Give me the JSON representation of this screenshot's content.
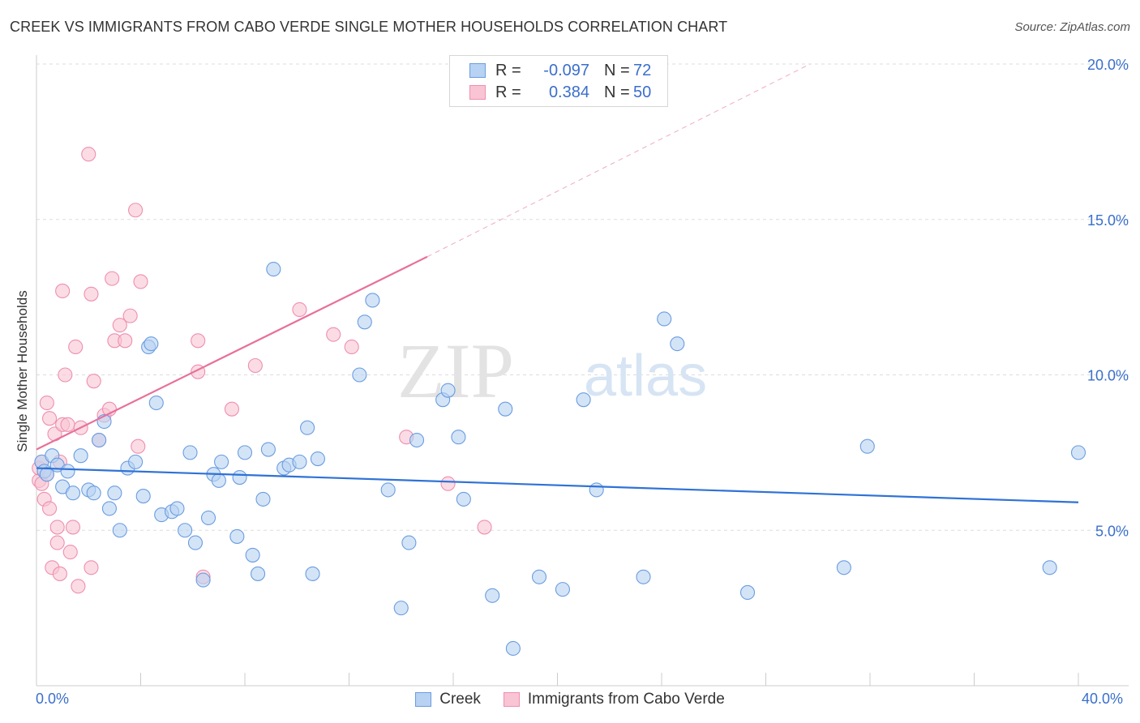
{
  "header": {
    "title": "CREEK VS IMMIGRANTS FROM CABO VERDE SINGLE MOTHER HOUSEHOLDS CORRELATION CHART",
    "source": "Source: ZipAtlas.com"
  },
  "watermark": {
    "zip": "ZIP",
    "atlas": "atlas"
  },
  "legend": {
    "rows": [
      {
        "r_label": "R =",
        "r_value": "-0.097",
        "n_label": "N =",
        "n_value": "72"
      },
      {
        "r_label": "R =",
        "r_value": "0.384",
        "n_label": "N =",
        "n_value": "50"
      }
    ],
    "bottom": [
      "Creek",
      "Immigrants from Cabo Verde"
    ]
  },
  "colors": {
    "creek_fill": "#b7d2f2",
    "creek_stroke": "#6a9de0",
    "creek_line": "#2f72d6",
    "cabo_fill": "#f9c4d4",
    "cabo_stroke": "#ef8fae",
    "cabo_line": "#e8709a",
    "tick_text": "#3a6fcc",
    "grid": "#dddddd"
  },
  "chart_data": {
    "type": "scatter",
    "title": "CREEK VS IMMIGRANTS FROM CABO VERDE SINGLE MOTHER HOUSEHOLDS CORRELATION CHART",
    "xlabel": "",
    "ylabel": "Single Mother Households",
    "xlim": [
      0,
      40
    ],
    "ylim": [
      0,
      20
    ],
    "x_tick_labels": [
      "0.0%",
      "40.0%"
    ],
    "y_ticks": [
      5,
      10,
      15,
      20
    ],
    "y_tick_labels": [
      "5.0%",
      "10.0%",
      "15.0%",
      "20.0%"
    ],
    "grid": true,
    "legend_position": "top-center",
    "series": [
      {
        "name": "Creek",
        "r": -0.097,
        "n": 72,
        "trend": {
          "x": [
            0,
            40
          ],
          "y": [
            7.0,
            5.9
          ]
        },
        "points": [
          [
            0.2,
            7.2
          ],
          [
            0.3,
            6.9
          ],
          [
            0.4,
            6.8
          ],
          [
            0.6,
            7.4
          ],
          [
            0.8,
            7.1
          ],
          [
            1.0,
            6.4
          ],
          [
            1.2,
            6.9
          ],
          [
            1.4,
            6.2
          ],
          [
            1.7,
            7.4
          ],
          [
            2.0,
            6.3
          ],
          [
            2.2,
            6.2
          ],
          [
            2.4,
            7.9
          ],
          [
            2.6,
            8.5
          ],
          [
            2.8,
            5.7
          ],
          [
            3.0,
            6.2
          ],
          [
            3.2,
            5.0
          ],
          [
            3.5,
            7.0
          ],
          [
            3.8,
            7.2
          ],
          [
            4.1,
            6.1
          ],
          [
            4.3,
            10.9
          ],
          [
            4.4,
            11.0
          ],
          [
            4.6,
            9.1
          ],
          [
            4.8,
            5.5
          ],
          [
            5.2,
            5.6
          ],
          [
            5.4,
            5.7
          ],
          [
            5.7,
            5.0
          ],
          [
            5.9,
            7.5
          ],
          [
            6.1,
            4.6
          ],
          [
            6.4,
            3.4
          ],
          [
            6.6,
            5.4
          ],
          [
            6.8,
            6.8
          ],
          [
            7.0,
            6.6
          ],
          [
            7.1,
            7.2
          ],
          [
            7.7,
            4.8
          ],
          [
            7.8,
            6.7
          ],
          [
            8.0,
            7.5
          ],
          [
            8.3,
            4.2
          ],
          [
            8.5,
            3.6
          ],
          [
            8.7,
            6.0
          ],
          [
            8.9,
            7.6
          ],
          [
            9.1,
            13.4
          ],
          [
            9.5,
            7.0
          ],
          [
            9.7,
            7.1
          ],
          [
            10.1,
            7.2
          ],
          [
            10.4,
            8.3
          ],
          [
            10.6,
            3.6
          ],
          [
            10.8,
            7.3
          ],
          [
            12.4,
            10.0
          ],
          [
            12.6,
            11.7
          ],
          [
            12.9,
            12.4
          ],
          [
            13.5,
            6.3
          ],
          [
            14.0,
            2.5
          ],
          [
            14.3,
            4.6
          ],
          [
            14.6,
            7.9
          ],
          [
            15.6,
            9.2
          ],
          [
            15.8,
            9.5
          ],
          [
            16.2,
            8.0
          ],
          [
            16.4,
            6.0
          ],
          [
            17.5,
            2.9
          ],
          [
            18.0,
            8.9
          ],
          [
            18.3,
            1.2
          ],
          [
            19.3,
            3.5
          ],
          [
            20.2,
            3.1
          ],
          [
            21.0,
            9.2
          ],
          [
            21.5,
            6.3
          ],
          [
            23.3,
            3.5
          ],
          [
            24.1,
            11.8
          ],
          [
            24.6,
            11.0
          ],
          [
            27.3,
            3.0
          ],
          [
            31.0,
            3.8
          ],
          [
            31.9,
            7.7
          ],
          [
            38.9,
            3.8
          ],
          [
            40.0,
            7.5
          ]
        ]
      },
      {
        "name": "Immigrants from Cabo Verde",
        "r": 0.384,
        "n": 50,
        "trend": {
          "x": [
            0,
            15
          ],
          "y": [
            7.6,
            13.8
          ]
        },
        "trend_dashed": {
          "x": [
            15,
            29.7
          ],
          "y": [
            13.8,
            20.0
          ]
        },
        "points": [
          [
            0.1,
            6.6
          ],
          [
            0.1,
            7.0
          ],
          [
            0.2,
            6.5
          ],
          [
            0.2,
            7.2
          ],
          [
            0.3,
            6.0
          ],
          [
            0.4,
            6.8
          ],
          [
            0.4,
            9.1
          ],
          [
            0.5,
            5.7
          ],
          [
            0.5,
            8.6
          ],
          [
            0.6,
            3.8
          ],
          [
            0.7,
            8.1
          ],
          [
            0.8,
            5.1
          ],
          [
            0.8,
            4.6
          ],
          [
            0.9,
            7.2
          ],
          [
            0.9,
            3.6
          ],
          [
            1.0,
            12.7
          ],
          [
            1.0,
            8.4
          ],
          [
            1.1,
            10.0
          ],
          [
            1.2,
            8.4
          ],
          [
            1.3,
            4.3
          ],
          [
            1.4,
            5.1
          ],
          [
            1.5,
            10.9
          ],
          [
            1.6,
            3.2
          ],
          [
            1.7,
            8.3
          ],
          [
            2.0,
            17.1
          ],
          [
            2.1,
            12.6
          ],
          [
            2.1,
            3.8
          ],
          [
            2.2,
            9.8
          ],
          [
            2.4,
            7.9
          ],
          [
            2.6,
            8.7
          ],
          [
            2.8,
            8.9
          ],
          [
            2.9,
            13.1
          ],
          [
            3.0,
            11.1
          ],
          [
            3.2,
            11.6
          ],
          [
            3.4,
            11.1
          ],
          [
            3.6,
            11.9
          ],
          [
            3.8,
            15.3
          ],
          [
            3.9,
            7.7
          ],
          [
            4.0,
            13.0
          ],
          [
            6.2,
            11.1
          ],
          [
            6.2,
            10.1
          ],
          [
            6.4,
            3.5
          ],
          [
            7.5,
            8.9
          ],
          [
            8.4,
            10.3
          ],
          [
            10.1,
            12.1
          ],
          [
            11.4,
            11.3
          ],
          [
            12.1,
            10.9
          ],
          [
            14.2,
            8.0
          ],
          [
            15.8,
            6.5
          ],
          [
            17.2,
            5.1
          ]
        ]
      }
    ]
  }
}
